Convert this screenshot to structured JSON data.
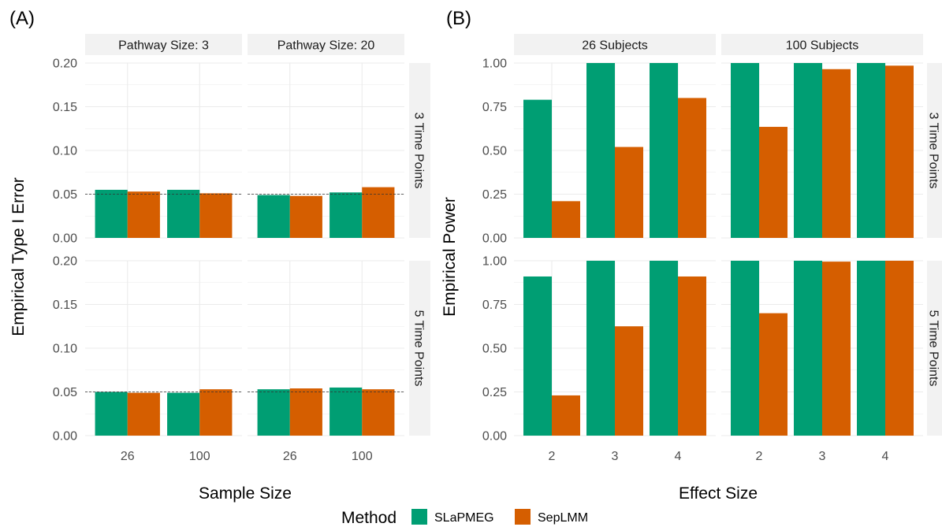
{
  "colors": {
    "SLaPMEG": "#009E73",
    "SepLMM": "#D55E00",
    "strip": "#f2f2f2",
    "grid": "#ebebeb"
  },
  "legend": {
    "title": "Method",
    "items": [
      {
        "label": "SLaPMEG",
        "color": "#009E73"
      },
      {
        "label": "SepLMM",
        "color": "#D55E00"
      }
    ]
  },
  "chart_data": [
    {
      "panel_label": "(A)",
      "type": "bar",
      "xlabel": "Sample Size",
      "ylabel": "Empirical Type I Error",
      "ylim": [
        0,
        0.2
      ],
      "yticks": [
        "0.00",
        "0.05",
        "0.10",
        "0.15",
        "0.20"
      ],
      "reference_line": 0.05,
      "col_facets": [
        "Pathway Size: 3",
        "Pathway Size: 20"
      ],
      "row_facets": [
        "3 Time Points",
        "5 Time Points"
      ],
      "categories": [
        "26",
        "100"
      ],
      "series_names": [
        "SLaPMEG",
        "SepLMM"
      ],
      "cells": [
        [
          {
            "SLaPMEG": [
              0.055,
              0.055
            ],
            "SepLMM": [
              0.053,
              0.051
            ]
          },
          {
            "SLaPMEG": [
              0.049,
              0.052
            ],
            "SepLMM": [
              0.048,
              0.058
            ]
          }
        ],
        [
          {
            "SLaPMEG": [
              0.05,
              0.049
            ],
            "SepLMM": [
              0.049,
              0.053
            ]
          },
          {
            "SLaPMEG": [
              0.053,
              0.055
            ],
            "SepLMM": [
              0.054,
              0.053
            ]
          }
        ]
      ]
    },
    {
      "panel_label": "(B)",
      "type": "bar",
      "xlabel": "Effect Size",
      "ylabel": "Empirical Power",
      "ylim": [
        0,
        1
      ],
      "yticks": [
        "0.00",
        "0.25",
        "0.50",
        "0.75",
        "1.00"
      ],
      "col_facets": [
        "26 Subjects",
        "100 Subjects"
      ],
      "row_facets": [
        "3 Time Points",
        "5 Time Points"
      ],
      "categories": [
        "2",
        "3",
        "4"
      ],
      "series_names": [
        "SLaPMEG",
        "SepLMM"
      ],
      "cells": [
        [
          {
            "SLaPMEG": [
              0.79,
              1.0,
              1.0
            ],
            "SepLMM": [
              0.21,
              0.52,
              0.8
            ]
          },
          {
            "SLaPMEG": [
              1.0,
              1.0,
              1.0
            ],
            "SepLMM": [
              0.635,
              0.965,
              0.985
            ]
          }
        ],
        [
          {
            "SLaPMEG": [
              0.91,
              1.0,
              1.0
            ],
            "SepLMM": [
              0.23,
              0.625,
              0.91
            ]
          },
          {
            "SLaPMEG": [
              1.0,
              1.0,
              1.0
            ],
            "SepLMM": [
              0.7,
              0.995,
              1.0
            ]
          }
        ]
      ]
    }
  ]
}
